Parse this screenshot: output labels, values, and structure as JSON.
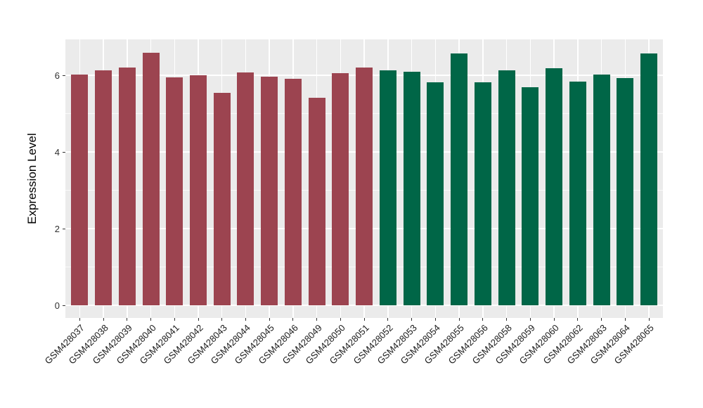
{
  "chart_data": {
    "type": "bar",
    "title": "",
    "xlabel": "",
    "ylabel": "Expression Level",
    "ylim": [
      -0.33,
      6.94
    ],
    "yticks_major": [
      0,
      2,
      4,
      6
    ],
    "yticks_minor": [
      1,
      3,
      5
    ],
    "grid": "on",
    "legend_position": "none",
    "colors": {
      "panel_background": "#EBEBEB",
      "gridline": "#FFFFFF",
      "axis_text": "#303030",
      "x_axis_text": "#1A1A1A",
      "axis_title": "#000000",
      "tick_mark": "#333333",
      "group1": "#9C4450",
      "group2": "#006647"
    },
    "groups": [
      {
        "name": "group1",
        "color": "#9C4450",
        "count": 13
      },
      {
        "name": "group2",
        "color": "#006647",
        "count": 12
      }
    ],
    "categories": [
      "GSM428037",
      "GSM428038",
      "GSM428039",
      "GSM428040",
      "GSM428041",
      "GSM428042",
      "GSM428043",
      "GSM428044",
      "GSM428045",
      "GSM428046",
      "GSM428049",
      "GSM428050",
      "GSM428051",
      "GSM428052",
      "GSM428053",
      "GSM428054",
      "GSM428055",
      "GSM428056",
      "GSM428058",
      "GSM428059",
      "GSM428060",
      "GSM428062",
      "GSM428063",
      "GSM428064",
      "GSM428065"
    ],
    "bars": [
      {
        "label": "GSM428037",
        "value": 6.02,
        "group": "group1"
      },
      {
        "label": "GSM428038",
        "value": 6.13,
        "group": "group1"
      },
      {
        "label": "GSM428039",
        "value": 6.21,
        "group": "group1"
      },
      {
        "label": "GSM428040",
        "value": 6.59,
        "group": "group1"
      },
      {
        "label": "GSM428041",
        "value": 5.94,
        "group": "group1"
      },
      {
        "label": "GSM428042",
        "value": 6.0,
        "group": "group1"
      },
      {
        "label": "GSM428043",
        "value": 5.54,
        "group": "group1"
      },
      {
        "label": "GSM428044",
        "value": 6.07,
        "group": "group1"
      },
      {
        "label": "GSM428045",
        "value": 5.96,
        "group": "group1"
      },
      {
        "label": "GSM428046",
        "value": 5.9,
        "group": "group1"
      },
      {
        "label": "GSM428049",
        "value": 5.41,
        "group": "group1"
      },
      {
        "label": "GSM428050",
        "value": 6.05,
        "group": "group1"
      },
      {
        "label": "GSM428051",
        "value": 6.2,
        "group": "group1"
      },
      {
        "label": "GSM428052",
        "value": 6.13,
        "group": "group2"
      },
      {
        "label": "GSM428053",
        "value": 6.1,
        "group": "group2"
      },
      {
        "label": "GSM428054",
        "value": 5.81,
        "group": "group2"
      },
      {
        "label": "GSM428055",
        "value": 6.57,
        "group": "group2"
      },
      {
        "label": "GSM428056",
        "value": 5.81,
        "group": "group2"
      },
      {
        "label": "GSM428058",
        "value": 6.12,
        "group": "group2"
      },
      {
        "label": "GSM428059",
        "value": 5.69,
        "group": "group2"
      },
      {
        "label": "GSM428060",
        "value": 6.19,
        "group": "group2"
      },
      {
        "label": "GSM428062",
        "value": 5.83,
        "group": "group2"
      },
      {
        "label": "GSM428063",
        "value": 6.02,
        "group": "group2"
      },
      {
        "label": "GSM428064",
        "value": 5.92,
        "group": "group2"
      },
      {
        "label": "GSM428065",
        "value": 6.56,
        "group": "group2"
      }
    ]
  }
}
